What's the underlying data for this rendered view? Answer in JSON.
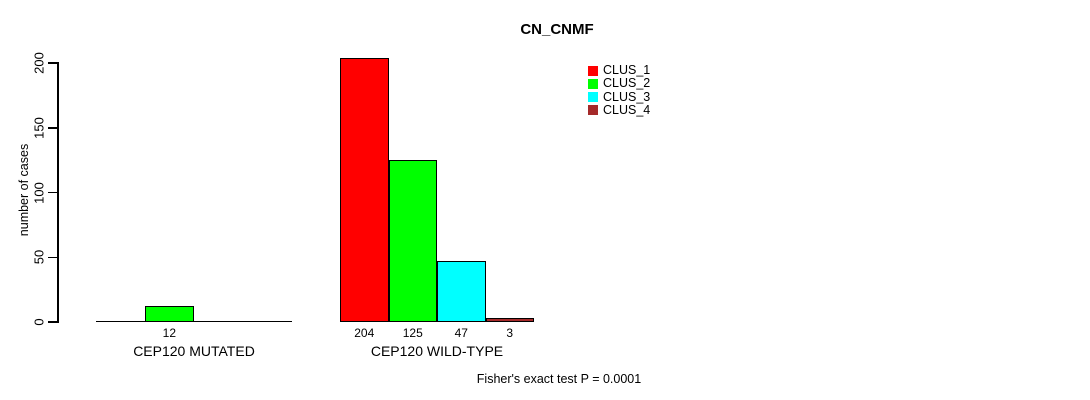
{
  "chart_data": {
    "type": "bar",
    "title": "CN_CNMF",
    "ylabel": "number of cases",
    "xlabel": "",
    "ylim": [
      0,
      200
    ],
    "yticks": [
      0,
      50,
      100,
      150,
      200
    ],
    "grid": false,
    "legend_position": "top-right",
    "background_color": "#ffffff",
    "axis_color": "#000000",
    "categories": [
      "CEP120 MUTATED",
      "CEP120 WILD-TYPE"
    ],
    "series": [
      {
        "name": "CLUS_1",
        "color": "#ff0000",
        "values": [
          0,
          204
        ]
      },
      {
        "name": "CLUS_2",
        "color": "#00ff00",
        "values": [
          12,
          125
        ]
      },
      {
        "name": "CLUS_3",
        "color": "#00ffff",
        "values": [
          0,
          47
        ]
      },
      {
        "name": "CLUS_4",
        "color": "#a52a2a",
        "values": [
          0,
          3
        ]
      }
    ],
    "bar_value_labels_shown": [
      "12",
      "204",
      "125",
      "47",
      "3"
    ],
    "annotation": "Fisher's exact test P = 0.0001"
  }
}
